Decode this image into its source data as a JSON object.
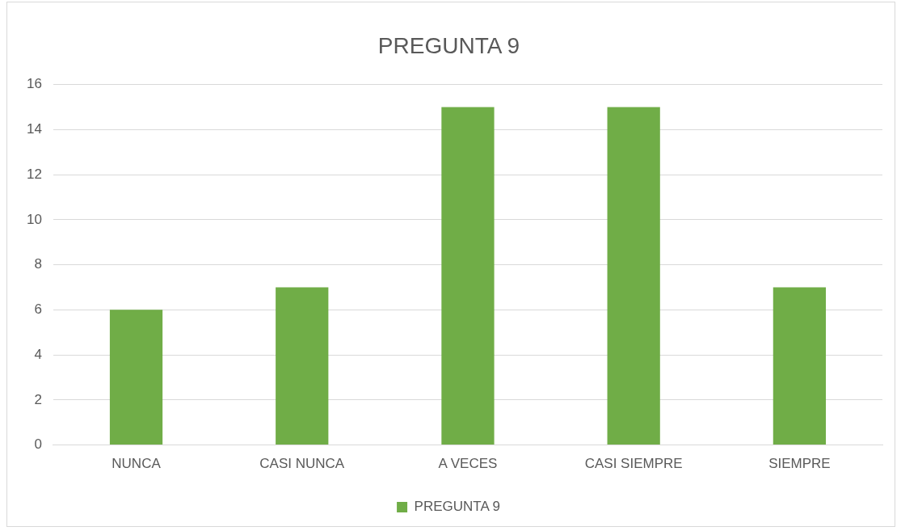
{
  "chart_data": {
    "type": "bar",
    "title": "PREGUNTA 9",
    "categories": [
      "NUNCA",
      "CASI NUNCA",
      "A VECES",
      "CASI SIEMPRE",
      "SIEMPRE"
    ],
    "series": [
      {
        "name": "PREGUNTA 9",
        "color": "#70ad47",
        "values": [
          6,
          7,
          15,
          15,
          7
        ]
      }
    ],
    "ylim": [
      0,
      16
    ],
    "yticks": [
      0,
      2,
      4,
      6,
      8,
      10,
      12,
      14,
      16
    ],
    "grid": "y",
    "legend": "bottom"
  }
}
